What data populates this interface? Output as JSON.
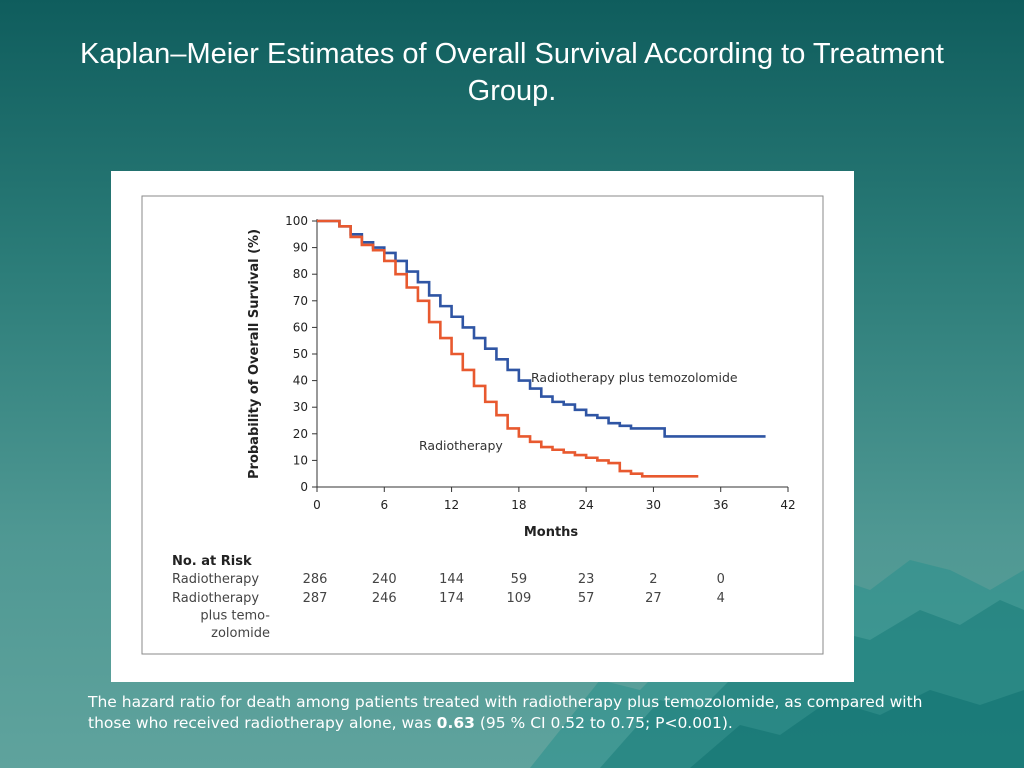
{
  "slide": {
    "title": "Kaplan–Meier Estimates of Overall Survival According to Treatment Group."
  },
  "caption": {
    "text_before": "The hazard ratio for death among patients treated with radiotherapy plus temozolomide, as compared with those who received radiotherapy alone, was ",
    "bold_value": "0.63",
    "text_after": " (95 % CI 0.52 to 0.75; P<0.001)."
  },
  "colors": {
    "radiotherapy": "#e8592f",
    "radiotherapy_plus_temozolomide": "#2f55a4",
    "background": "#2c7d79"
  },
  "chart_data": {
    "type": "line",
    "step": true,
    "xlabel": "Months",
    "ylabel": "Probability of Overall Survival (%)",
    "xlim": [
      0,
      42
    ],
    "ylim": [
      0,
      100
    ],
    "xticks": [
      "0",
      "6",
      "12",
      "18",
      "24",
      "30",
      "36",
      "42"
    ],
    "yticks": [
      "0",
      "10",
      "20",
      "30",
      "40",
      "50",
      "60",
      "70",
      "80",
      "90",
      "100"
    ],
    "grid": false,
    "series": [
      {
        "name": "Radiotherapy plus temozolomide",
        "color_key": "radiotherapy_plus_temozolomide",
        "points": [
          [
            0,
            100
          ],
          [
            1,
            100
          ],
          [
            2,
            98
          ],
          [
            3,
            95
          ],
          [
            4,
            92
          ],
          [
            5,
            90
          ],
          [
            6,
            88
          ],
          [
            7,
            85
          ],
          [
            8,
            81
          ],
          [
            9,
            77
          ],
          [
            10,
            72
          ],
          [
            11,
            68
          ],
          [
            12,
            64
          ],
          [
            13,
            60
          ],
          [
            14,
            56
          ],
          [
            15,
            52
          ],
          [
            16,
            48
          ],
          [
            17,
            44
          ],
          [
            18,
            40
          ],
          [
            19,
            37
          ],
          [
            20,
            34
          ],
          [
            21,
            32
          ],
          [
            22,
            31
          ],
          [
            23,
            29
          ],
          [
            24,
            27
          ],
          [
            25,
            26
          ],
          [
            26,
            24
          ],
          [
            27,
            23
          ],
          [
            28,
            22
          ],
          [
            29,
            22
          ],
          [
            30,
            22
          ],
          [
            31,
            19
          ],
          [
            32,
            19
          ],
          [
            33,
            19
          ],
          [
            34,
            19
          ],
          [
            35,
            19
          ],
          [
            36,
            19
          ],
          [
            37,
            19
          ],
          [
            38,
            19
          ],
          [
            39,
            19
          ],
          [
            40,
            19
          ]
        ]
      },
      {
        "name": "Radiotherapy",
        "color_key": "radiotherapy",
        "points": [
          [
            0,
            100
          ],
          [
            1,
            100
          ],
          [
            2,
            98
          ],
          [
            3,
            94
          ],
          [
            4,
            91
          ],
          [
            5,
            89
          ],
          [
            6,
            85
          ],
          [
            7,
            80
          ],
          [
            8,
            75
          ],
          [
            9,
            70
          ],
          [
            10,
            62
          ],
          [
            11,
            56
          ],
          [
            12,
            50
          ],
          [
            13,
            44
          ],
          [
            14,
            38
          ],
          [
            15,
            32
          ],
          [
            16,
            27
          ],
          [
            17,
            22
          ],
          [
            18,
            19
          ],
          [
            19,
            17
          ],
          [
            20,
            15
          ],
          [
            21,
            14
          ],
          [
            22,
            13
          ],
          [
            23,
            12
          ],
          [
            24,
            11
          ],
          [
            25,
            10
          ],
          [
            26,
            9
          ],
          [
            27,
            6
          ],
          [
            28,
            5
          ],
          [
            29,
            4
          ],
          [
            30,
            4
          ],
          [
            31,
            4
          ],
          [
            32,
            4
          ],
          [
            33,
            4
          ],
          [
            34,
            4
          ]
        ]
      }
    ],
    "annotations": [
      {
        "text": "Radiotherapy plus temozolomide",
        "series": "Radiotherapy plus temozolomide"
      },
      {
        "text": "Radiotherapy",
        "series": "Radiotherapy"
      }
    ],
    "risk_table": {
      "title": "No. at Risk",
      "rows": [
        {
          "label_lines": [
            "Radiotherapy"
          ],
          "values": [
            "286",
            "240",
            "144",
            "59",
            "23",
            "2",
            "0"
          ]
        },
        {
          "label_lines": [
            "Radiotherapy",
            "plus temo-",
            "zolomide"
          ],
          "values": [
            "287",
            "246",
            "174",
            "109",
            "57",
            "27",
            "4"
          ]
        }
      ]
    }
  }
}
